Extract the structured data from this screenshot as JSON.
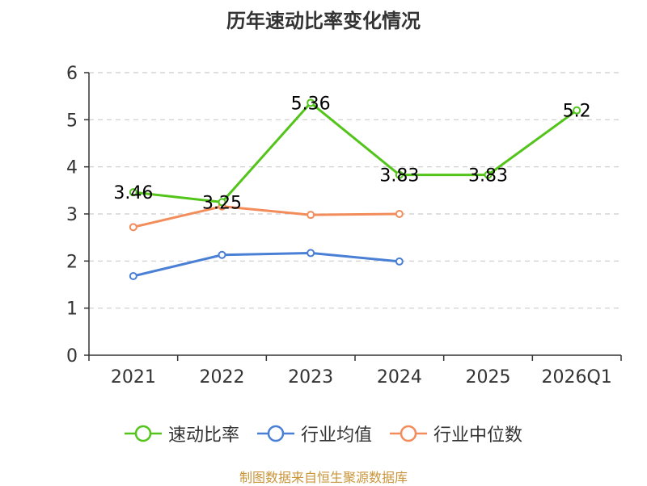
{
  "chart_data": {
    "type": "line",
    "title": "历年速动比率变化情况",
    "categories": [
      "2021",
      "2022",
      "2023",
      "2024",
      "2025",
      "2026Q1"
    ],
    "ylim": [
      0,
      6
    ],
    "yticks": [
      0,
      1,
      2,
      3,
      4,
      5,
      6
    ],
    "grid": true,
    "legend_position": "bottom-center",
    "series": [
      {
        "name": "速动比率",
        "color": "#52c41a",
        "values": [
          3.46,
          3.25,
          5.36,
          3.83,
          3.83,
          5.2
        ],
        "labels": [
          "3.46",
          "3.25",
          "5.36",
          "3.83",
          "3.83",
          "5.2"
        ]
      },
      {
        "name": "行业均值",
        "color": "#4a7fd6",
        "values": [
          1.68,
          2.13,
          2.17,
          1.99,
          null,
          null
        ]
      },
      {
        "name": "行业中位数",
        "color": "#f28c5a",
        "values": [
          2.72,
          3.16,
          2.98,
          3.0,
          null,
          null
        ]
      }
    ]
  },
  "footer": {
    "source": "制图数据来自恒生聚源数据库"
  }
}
